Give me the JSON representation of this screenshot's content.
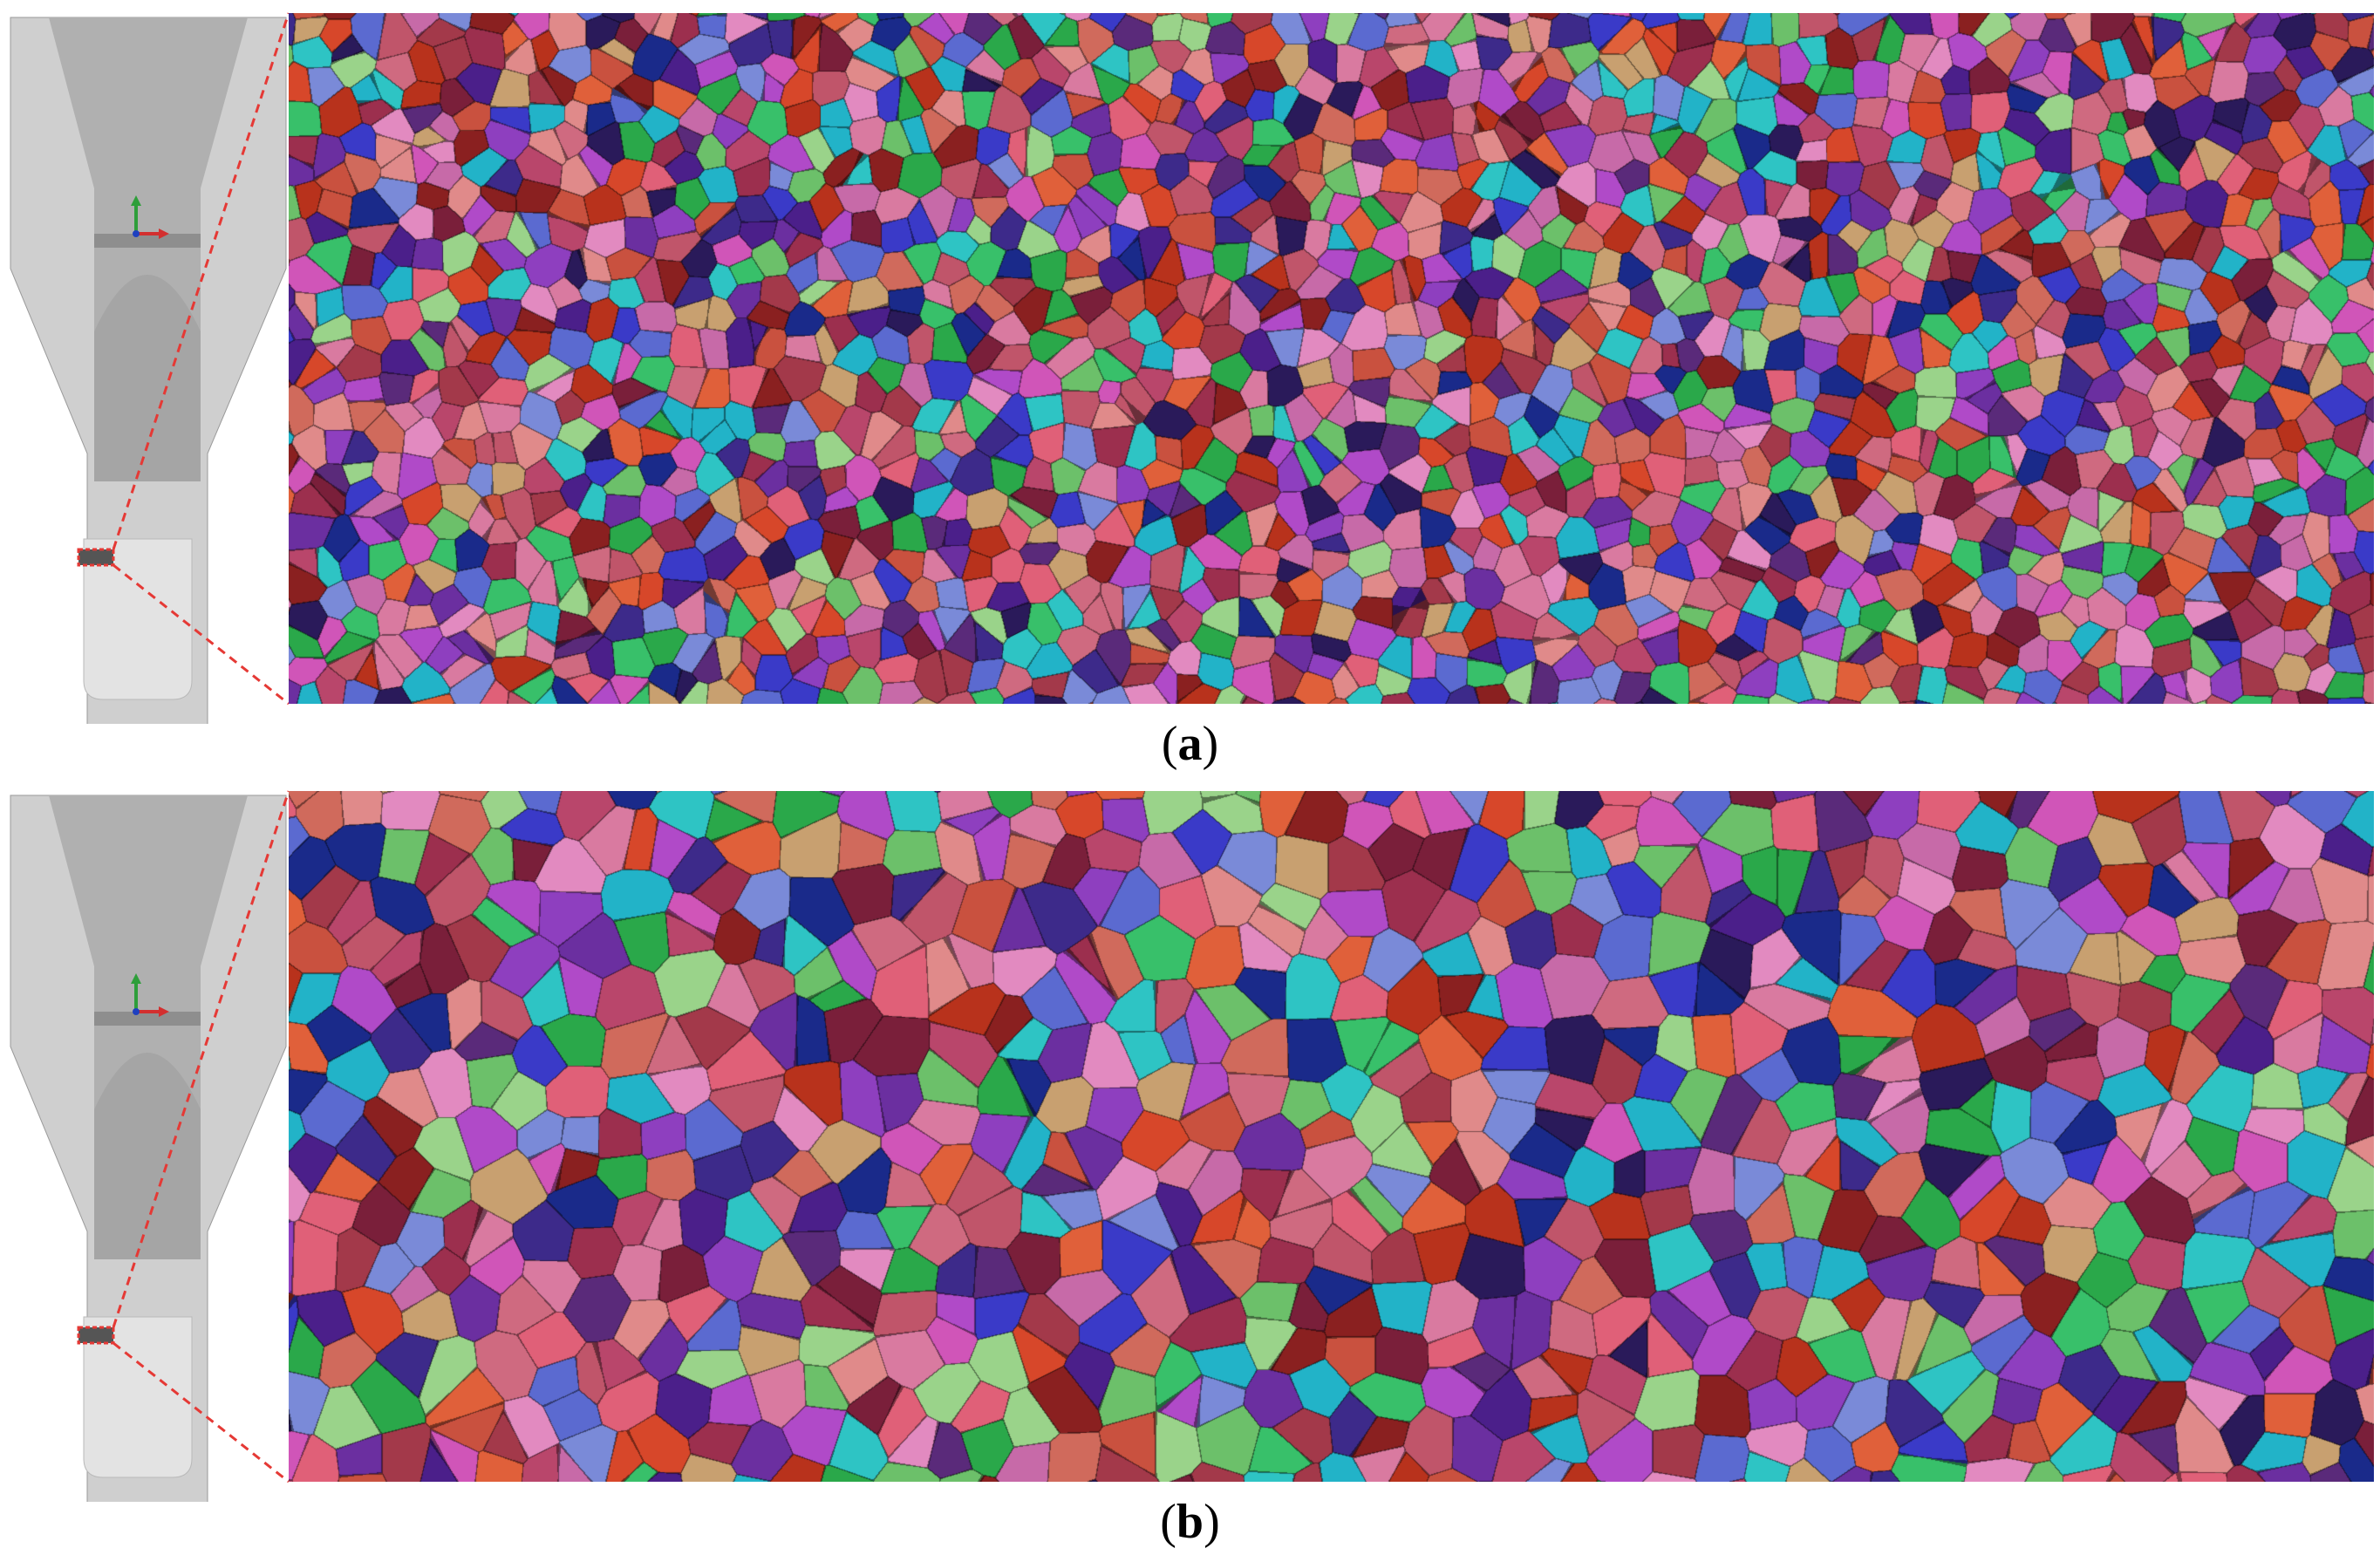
{
  "panels": [
    {
      "id": "a",
      "label": "a",
      "grain_size": "fine"
    },
    {
      "id": "b",
      "label": "b",
      "grain_size": "coarse"
    }
  ],
  "colors": {
    "background": "#ffffff",
    "part_outer": "#cfcfcf",
    "part_inner": "#a9a9a9",
    "part_tip": "#e2e2e2",
    "leader_line": "#e53935",
    "axis_y": "#2e9e3a",
    "axis_x": "#d32f2f",
    "axis_z": "#1e40c0",
    "grain_palette": [
      "#c0556a",
      "#b9466b",
      "#9c2f4e",
      "#d06a5c",
      "#c9513f",
      "#e0603a",
      "#7a1f3a",
      "#5a2a7a",
      "#6b2fa0",
      "#4b1f8a",
      "#2a1a5a",
      "#3d2a8a",
      "#1a2a8a",
      "#3a3ac8",
      "#8e3fbf",
      "#b04ac8",
      "#d055b8",
      "#d97aa0",
      "#e08a8a",
      "#cf6a80",
      "#a3394a",
      "#8a2020",
      "#b8321c",
      "#d7472a",
      "#22b3c8",
      "#2ec4c4",
      "#38c06a",
      "#2aa84a",
      "#6cc06a",
      "#9ad38a",
      "#c8a070",
      "#c76aa8",
      "#e28ac0",
      "#e06078",
      "#5b6ad0",
      "#7a8ad8"
    ]
  }
}
